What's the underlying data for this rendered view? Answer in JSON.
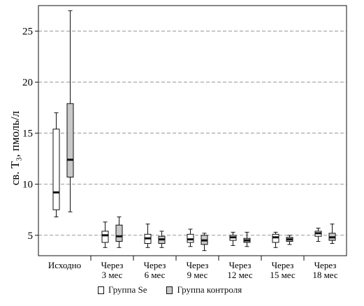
{
  "chart_data": {
    "type": "box",
    "ylabel": "св. T₃, пмоль/л",
    "ylim": [
      3,
      27.5
    ],
    "yticks": [
      5,
      10,
      15,
      20,
      25
    ],
    "grid": "horizontal dashed",
    "legend_position": "bottom",
    "categories": [
      [
        "Исходно"
      ],
      [
        "Через",
        "3 мес"
      ],
      [
        "Через",
        "6 мес"
      ],
      [
        "Через",
        "9 мес"
      ],
      [
        "Через",
        "12 мес"
      ],
      [
        "Через",
        "15 мес"
      ],
      [
        "Через",
        "18 мес"
      ]
    ],
    "series": [
      {
        "name": "Группа Se",
        "color": "#ffffff",
        "boxes": [
          {
            "min": 6.8,
            "q1": 7.5,
            "median": 9.2,
            "q3": 15.4,
            "max": 17.0
          },
          {
            "min": 3.8,
            "q1": 4.3,
            "median": 5.0,
            "q3": 5.4,
            "max": 6.3
          },
          {
            "min": 3.8,
            "q1": 4.2,
            "median": 4.7,
            "q3": 5.1,
            "max": 6.1
          },
          {
            "min": 3.9,
            "q1": 4.3,
            "median": 4.6,
            "q3": 5.1,
            "max": 5.6
          },
          {
            "min": 4.0,
            "q1": 4.5,
            "median": 4.8,
            "q3": 5.0,
            "max": 5.3
          },
          {
            "min": 3.8,
            "q1": 4.3,
            "median": 4.8,
            "q3": 5.1,
            "max": 5.3
          },
          {
            "min": 4.4,
            "q1": 4.9,
            "median": 5.2,
            "q3": 5.4,
            "max": 5.7
          }
        ]
      },
      {
        "name": "Группа контроля",
        "color": "#c8c8c8",
        "boxes": [
          {
            "min": 7.3,
            "q1": 10.7,
            "median": 12.4,
            "q3": 17.9,
            "max": 27.0
          },
          {
            "min": 3.8,
            "q1": 4.4,
            "median": 4.9,
            "q3": 6.0,
            "max": 6.8
          },
          {
            "min": 3.8,
            "q1": 4.2,
            "median": 4.6,
            "q3": 4.9,
            "max": 5.4
          },
          {
            "min": 3.5,
            "q1": 4.1,
            "median": 4.5,
            "q3": 5.0,
            "max": 5.2
          },
          {
            "min": 3.9,
            "q1": 4.3,
            "median": 4.5,
            "q3": 4.7,
            "max": 5.3
          },
          {
            "min": 4.1,
            "q1": 4.4,
            "median": 4.6,
            "q3": 4.8,
            "max": 5.0
          },
          {
            "min": 4.2,
            "q1": 4.5,
            "median": 4.8,
            "q3": 5.2,
            "max": 6.1
          }
        ]
      }
    ]
  },
  "legend": {
    "se_label": "Группа Se",
    "control_label": "Группа контроля"
  }
}
